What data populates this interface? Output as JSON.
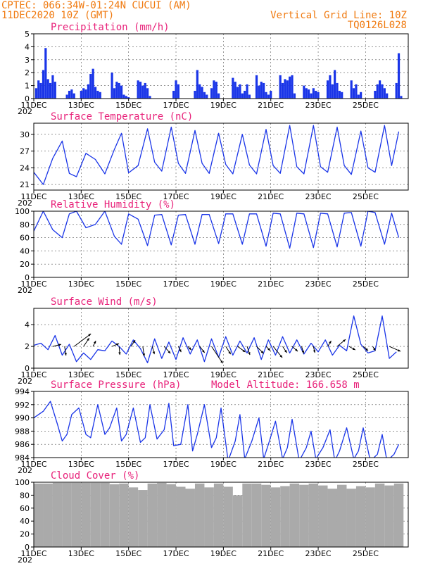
{
  "header": {
    "line1": "CPTEC:   066:34W-01:24N   CUCUI (AM)",
    "line2": "11DEC2020 10Z (GMT)",
    "right1": "Vertical Grid Line: 10Z",
    "right2": "TQ0126L028"
  },
  "colors": {
    "header": "#f07a10",
    "title": "#e8227a",
    "series": "#1a35e8",
    "cloud": "#aaaaaa",
    "wind_arrow": "#000000"
  },
  "x_axis": {
    "start": "11DEC2020 10Z",
    "end": "26DEC2020 06Z",
    "tick_labels": [
      "11DEC",
      "13DEC",
      "15DEC",
      "17DEC",
      "19DEC",
      "21DEC",
      "23DEC",
      "25DEC"
    ],
    "tick_days": [
      0,
      2,
      4,
      6,
      8,
      10,
      12,
      14
    ],
    "year_label": "202"
  },
  "chart_data": [
    {
      "id": "precip",
      "type": "bar",
      "title": "Precipitation (mm/h)",
      "ylim": [
        0,
        5
      ],
      "yticks": [
        0,
        1,
        2,
        3,
        4,
        5
      ],
      "grid": true,
      "approximate": true,
      "x": [
        0.1,
        0.2,
        0.3,
        0.4,
        0.5,
        0.6,
        0.7,
        0.8,
        0.9,
        1.4,
        1.5,
        1.6,
        1.7,
        2.0,
        2.1,
        2.2,
        2.3,
        2.4,
        2.5,
        2.6,
        2.7,
        2.8,
        3.3,
        3.4,
        3.5,
        3.6,
        3.7,
        3.8,
        3.9,
        4.0,
        4.4,
        4.5,
        4.6,
        4.7,
        4.8,
        4.9,
        5.9,
        6.0,
        6.1,
        6.8,
        6.9,
        7.0,
        7.1,
        7.2,
        7.3,
        7.5,
        7.6,
        7.7,
        7.8,
        8.4,
        8.5,
        8.6,
        8.7,
        8.8,
        8.9,
        9.0,
        9.1,
        9.4,
        9.5,
        9.6,
        9.7,
        9.8,
        9.9,
        10.0,
        10.4,
        10.5,
        10.6,
        10.7,
        10.8,
        10.9,
        11.0,
        11.4,
        11.5,
        11.6,
        11.7,
        11.8,
        11.9,
        12.0,
        12.4,
        12.5,
        12.6,
        12.7,
        12.8,
        12.9,
        13.0,
        13.4,
        13.5,
        13.6,
        13.7,
        13.8,
        14.4,
        14.5,
        14.6,
        14.7,
        14.8,
        14.9,
        15.3,
        15.4,
        15.5
      ],
      "values": [
        0.8,
        1.4,
        1.2,
        2.2,
        3.9,
        1.5,
        1.2,
        1.8,
        1.3,
        0.3,
        0.6,
        0.7,
        0.4,
        0.6,
        0.8,
        0.7,
        1.1,
        1.9,
        2.3,
        0.9,
        0.6,
        0.5,
        2.0,
        0.8,
        1.3,
        1.2,
        1.0,
        0.3,
        0.2,
        0.1,
        1.4,
        1.3,
        1.0,
        1.2,
        0.8,
        0.2,
        0.6,
        1.4,
        1.1,
        0.6,
        2.2,
        1.1,
        0.9,
        0.5,
        0.3,
        0.8,
        1.4,
        1.3,
        0.4,
        1.6,
        1.3,
        0.9,
        1.1,
        0.4,
        0.6,
        1.1,
        0.3,
        1.8,
        1.0,
        1.3,
        1.2,
        0.5,
        0.3,
        0.6,
        1.8,
        1.2,
        1.5,
        1.4,
        1.7,
        1.8,
        0.4,
        1.0,
        0.8,
        0.7,
        0.4,
        0.8,
        0.6,
        0.5,
        1.4,
        1.8,
        1.1,
        2.2,
        1.2,
        0.6,
        0.5,
        1.4,
        0.8,
        1.1,
        0.3,
        0.5,
        0.6,
        1.1,
        1.4,
        1.1,
        0.8,
        0.4,
        1.2,
        3.5,
        0.2
      ]
    },
    {
      "id": "temp",
      "type": "line",
      "title": "Surface Temperature (nC)",
      "ylim": [
        20,
        32
      ],
      "yticks": [
        21,
        24,
        27,
        30
      ],
      "grid": true,
      "approximate": true,
      "x": [
        0.0,
        0.4,
        0.8,
        1.2,
        1.5,
        1.8,
        2.2,
        2.6,
        3.0,
        3.4,
        3.7,
        4.0,
        4.4,
        4.8,
        5.1,
        5.4,
        5.8,
        6.1,
        6.4,
        6.8,
        7.1,
        7.4,
        7.8,
        8.1,
        8.4,
        8.8,
        9.1,
        9.4,
        9.8,
        10.1,
        10.4,
        10.8,
        11.1,
        11.4,
        11.8,
        12.1,
        12.4,
        12.8,
        13.1,
        13.4,
        13.8,
        14.1,
        14.4,
        14.8,
        15.1,
        15.4
      ],
      "values": [
        23.2,
        21.0,
        25.7,
        28.8,
        23.0,
        22.4,
        26.6,
        25.5,
        22.9,
        27.3,
        30.2,
        23.1,
        24.4,
        31.0,
        25.0,
        23.4,
        31.3,
        24.8,
        23.0,
        30.7,
        24.8,
        23.0,
        30.2,
        24.6,
        22.9,
        30.0,
        24.5,
        22.9,
        30.9,
        24.4,
        23.0,
        31.6,
        24.2,
        22.9,
        31.6,
        24.2,
        23.2,
        31.3,
        24.4,
        22.8,
        30.6,
        24.0,
        23.2,
        31.6,
        24.4,
        30.5
      ]
    },
    {
      "id": "rh",
      "type": "line",
      "title": "Relative Humidity (%)",
      "ylim": [
        0,
        100
      ],
      "yticks": [
        0,
        20,
        40,
        60,
        80,
        100
      ],
      "grid": true,
      "approximate": true,
      "x": [
        0.0,
        0.4,
        0.8,
        1.2,
        1.5,
        1.8,
        2.2,
        2.6,
        3.0,
        3.4,
        3.7,
        4.0,
        4.4,
        4.8,
        5.1,
        5.4,
        5.8,
        6.1,
        6.4,
        6.8,
        7.1,
        7.4,
        7.8,
        8.1,
        8.4,
        8.8,
        9.1,
        9.4,
        9.8,
        10.1,
        10.4,
        10.8,
        11.1,
        11.4,
        11.8,
        12.1,
        12.4,
        12.8,
        13.1,
        13.4,
        13.8,
        14.1,
        14.4,
        14.8,
        15.1,
        15.4
      ],
      "values": [
        70,
        100,
        72,
        60,
        96,
        100,
        75,
        80,
        100,
        62,
        50,
        96,
        88,
        48,
        94,
        95,
        49,
        94,
        95,
        50,
        95,
        95,
        51,
        96,
        96,
        50,
        96,
        96,
        47,
        97,
        96,
        44,
        97,
        96,
        45,
        97,
        96,
        46,
        97,
        98,
        47,
        100,
        98,
        50,
        97,
        60
      ]
    },
    {
      "id": "wind",
      "type": "line",
      "title": "Surface Wind (m/s)",
      "ylim": [
        0,
        5.5
      ],
      "yticks": [
        0,
        2,
        4
      ],
      "grid": true,
      "approximate": true,
      "x": [
        0.0,
        0.3,
        0.6,
        0.9,
        1.2,
        1.5,
        1.8,
        2.1,
        2.4,
        2.7,
        3.0,
        3.3,
        3.6,
        3.9,
        4.2,
        4.5,
        4.8,
        5.1,
        5.4,
        5.7,
        6.0,
        6.3,
        6.6,
        6.9,
        7.2,
        7.5,
        7.8,
        8.1,
        8.4,
        8.7,
        9.0,
        9.3,
        9.6,
        9.9,
        10.2,
        10.5,
        10.8,
        11.1,
        11.4,
        11.7,
        12.0,
        12.3,
        12.6,
        12.9,
        13.2,
        13.5,
        13.8,
        14.1,
        14.4,
        14.7,
        15.0,
        15.3
      ],
      "values": [
        2.1,
        2.3,
        1.7,
        3.0,
        1.2,
        2.2,
        0.6,
        1.4,
        0.8,
        1.7,
        1.6,
        2.5,
        2.0,
        1.3,
        2.6,
        1.8,
        0.5,
        2.7,
        0.9,
        2.4,
        0.8,
        2.8,
        1.3,
        2.6,
        0.6,
        2.7,
        1.0,
        2.9,
        1.2,
        2.5,
        1.4,
        2.8,
        0.8,
        2.6,
        1.2,
        2.9,
        1.4,
        2.6,
        1.3,
        2.3,
        1.5,
        2.6,
        1.2,
        2.1,
        1.6,
        4.8,
        2.2,
        1.4,
        1.6,
        4.8,
        0.9,
        1.5
      ],
      "arrows": {
        "x": [
          0.8,
          1.3,
          1.7,
          2.1,
          2.5,
          3.3,
          3.6,
          4.1,
          4.6,
          5.0,
          5.5,
          6.1,
          6.5,
          7.0,
          7.5,
          8.1,
          8.6,
          9.0,
          9.4,
          9.8,
          10.1,
          10.5,
          10.9,
          11.3,
          11.8,
          12.4,
          12.8,
          13.3,
          13.9,
          14.3,
          15.0
        ],
        "u": [
          1.2,
          0.2,
          2.4,
          0.8,
          0.4,
          1.0,
          0.1,
          0.6,
          0.2,
          0.3,
          0.9,
          0.4,
          0.5,
          0.7,
          1.6,
          0.7,
          1.1,
          0.4,
          1.0,
          0.6,
          1.3,
          0.6,
          0.8,
          0.3,
          0.2,
          0.5,
          1.2,
          0.9,
          0.7,
          0.4,
          1.6
        ],
        "v": [
          0.3,
          -1.3,
          1.8,
          1.2,
          0.8,
          0.4,
          -1.2,
          0.9,
          -1.4,
          -1.1,
          -1.0,
          -0.8,
          -0.5,
          -0.9,
          -2.4,
          -1.1,
          -0.8,
          -1.2,
          -1.0,
          -0.6,
          -1.6,
          -0.9,
          -0.7,
          -1.0,
          -0.9,
          0.8,
          1.0,
          -0.5,
          -0.6,
          -0.6,
          -0.7
        ]
      }
    },
    {
      "id": "press",
      "type": "line",
      "title": "Surface Pressure (hPa)",
      "annotation": "Model Altitude: 166.658  m",
      "ylim": [
        984,
        994
      ],
      "yticks": [
        984,
        986,
        988,
        990,
        992,
        994
      ],
      "grid": true,
      "approximate": true,
      "x": [
        0.0,
        0.4,
        0.7,
        1.0,
        1.2,
        1.4,
        1.6,
        1.9,
        2.2,
        2.4,
        2.7,
        3.0,
        3.2,
        3.5,
        3.7,
        3.9,
        4.2,
        4.5,
        4.7,
        4.9,
        5.2,
        5.5,
        5.7,
        5.9,
        6.2,
        6.5,
        6.7,
        6.9,
        7.2,
        7.5,
        7.7,
        7.9,
        8.2,
        8.5,
        8.7,
        8.9,
        9.2,
        9.5,
        9.7,
        9.9,
        10.2,
        10.5,
        10.7,
        10.9,
        11.2,
        11.5,
        11.7,
        11.9,
        12.2,
        12.5,
        12.7,
        12.9,
        13.2,
        13.5,
        13.7,
        13.9,
        14.2,
        14.5,
        14.7,
        14.9,
        15.2,
        15.4
      ],
      "values": [
        990.0,
        991.0,
        992.5,
        989.0,
        986.5,
        987.5,
        990.5,
        991.5,
        987.5,
        987.0,
        992.0,
        987.5,
        988.5,
        991.5,
        986.5,
        987.5,
        991.5,
        986.3,
        987.0,
        992.0,
        986.8,
        988.2,
        992.2,
        985.8,
        986.0,
        992.0,
        985.0,
        987.5,
        992.0,
        985.5,
        987.0,
        991.5,
        983.5,
        986.5,
        990.5,
        983.8,
        986.5,
        990.0,
        983.8,
        986.0,
        989.5,
        983.8,
        985.5,
        989.8,
        983.5,
        985.5,
        988.0,
        983.8,
        985.5,
        988.2,
        983.5,
        985.0,
        988.5,
        983.8,
        985.0,
        988.5,
        983.5,
        984.5,
        987.5,
        983.5,
        984.5,
        986.0
      ]
    },
    {
      "id": "cloud",
      "type": "bar",
      "title": "Cloud Cover (%)",
      "ylim": [
        0,
        100
      ],
      "yticks": [
        0,
        20,
        40,
        60,
        80,
        100
      ],
      "grid": true,
      "approximate": true,
      "x": [
        0.2,
        0.6,
        1.0,
        1.4,
        1.8,
        2.2,
        2.6,
        3.0,
        3.4,
        3.8,
        4.2,
        4.6,
        5.0,
        5.4,
        5.8,
        6.2,
        6.6,
        7.0,
        7.4,
        7.8,
        8.2,
        8.6,
        9.0,
        9.4,
        9.8,
        10.2,
        10.6,
        11.0,
        11.4,
        11.8,
        12.2,
        12.6,
        13.0,
        13.4,
        13.8,
        14.2,
        14.6,
        15.0,
        15.4
      ],
      "values": [
        98,
        98,
        99,
        99,
        99,
        99,
        99,
        99,
        97,
        98,
        92,
        88,
        98,
        99,
        97,
        93,
        90,
        98,
        92,
        98,
        93,
        80,
        98,
        98,
        96,
        92,
        94,
        98,
        96,
        98,
        95,
        90,
        96,
        90,
        94,
        92,
        98,
        95,
        98
      ]
    }
  ]
}
